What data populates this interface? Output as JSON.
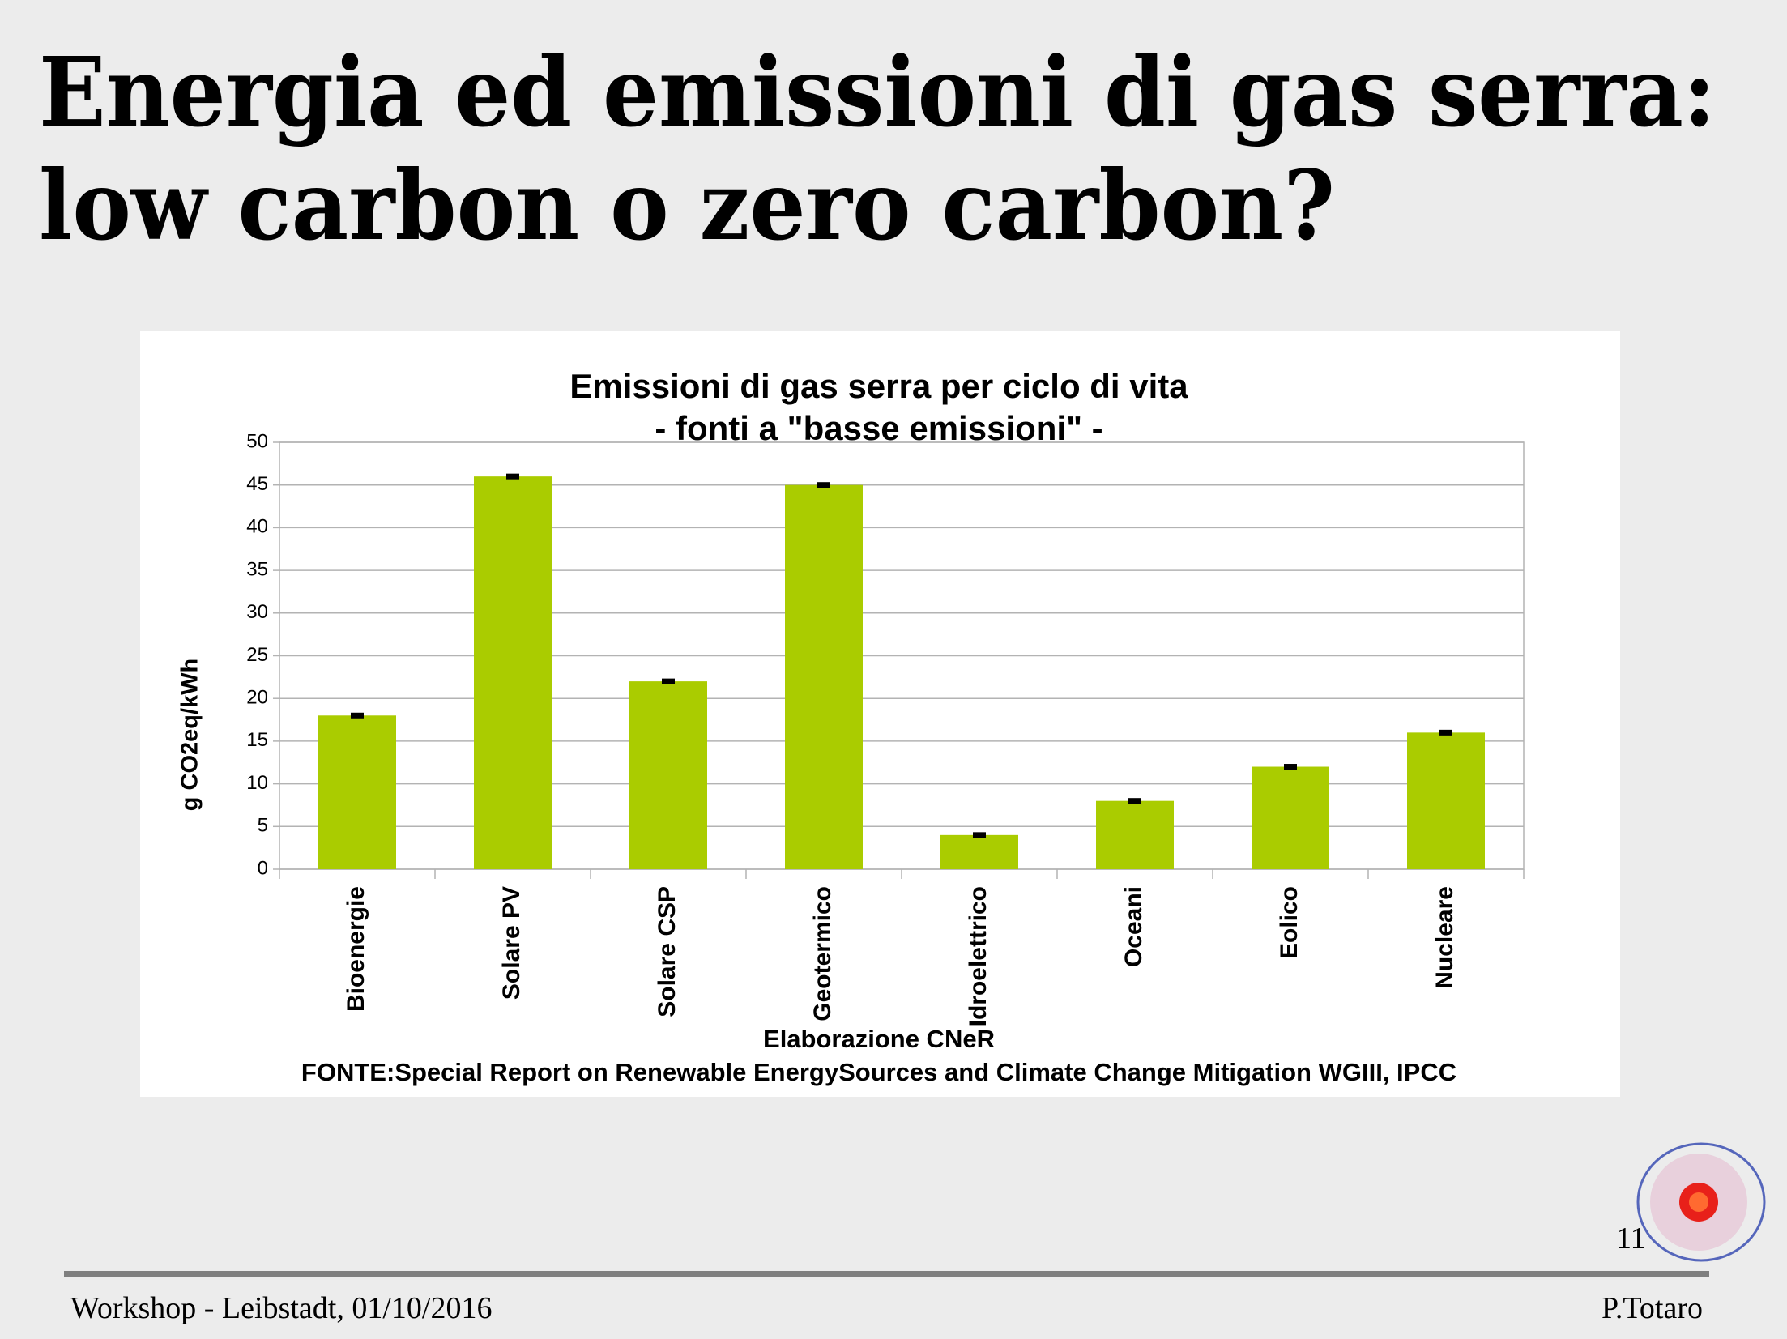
{
  "slide": {
    "title_lines": [
      "Energia ed emissioni di gas serra:",
      "low carbon o zero carbon?"
    ],
    "page_number": "11",
    "footer_left": "Workshop -  Leibstadt, 01/10/2016",
    "footer_right": "P.Totaro"
  },
  "chart_data": {
    "type": "bar",
    "title": "Emissioni di gas serra per ciclo di vita",
    "subtitle": "- fonti a \"basse emissioni\" -",
    "y_label": "g CO2eq/kWh",
    "x_label": "Elaborazione CNeR",
    "source": "FONTE:Special Report on Renewable EnergySources and Climate Change Mitigation WGIII, IPCC",
    "categories": [
      "Bioenergie",
      "Solare PV",
      "Solare CSP",
      "Geotermico",
      "Idroelettrico",
      "Oceani",
      "Eolico",
      "Nucleare"
    ],
    "values": [
      18,
      46,
      22,
      45,
      4,
      8,
      12,
      16
    ],
    "color": "#aacc00",
    "ylim": [
      0,
      50
    ],
    "yticks": [
      0,
      5,
      10,
      15,
      20,
      25,
      30,
      35,
      40,
      45,
      50
    ],
    "grid": true
  }
}
